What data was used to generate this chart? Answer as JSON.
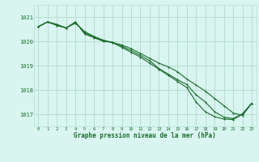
{
  "title": "Graphe pression niveau de la mer (hPa)",
  "bg_color": "#d8f5f0",
  "grid_color": "#b8ddd0",
  "line_color": "#1a6b2a",
  "ylim": [
    1016.5,
    1021.5
  ],
  "yticks": [
    1017,
    1018,
    1019,
    1020,
    1021
  ],
  "xlim": [
    -0.5,
    23.5
  ],
  "xticks": [
    0,
    1,
    2,
    3,
    4,
    5,
    6,
    7,
    8,
    9,
    10,
    11,
    12,
    13,
    14,
    15,
    16,
    17,
    18,
    19,
    20,
    21,
    22,
    23
  ],
  "series1": [
    1020.6,
    1020.8,
    1020.65,
    1020.55,
    1020.75,
    1020.4,
    1020.2,
    1020.05,
    1019.95,
    1019.85,
    1019.7,
    1019.5,
    1019.3,
    1019.1,
    1018.95,
    1018.75,
    1018.45,
    1018.2,
    1017.95,
    1017.65,
    1017.35,
    1017.05,
    1016.95,
    1017.45
  ],
  "series2": [
    1020.6,
    1020.8,
    1020.7,
    1020.55,
    1020.8,
    1020.3,
    1020.15,
    1020.0,
    1019.95,
    1019.75,
    1019.55,
    1019.35,
    1019.1,
    1018.85,
    1018.6,
    1018.35,
    1018.1,
    1017.5,
    1017.1,
    1016.9,
    1016.8,
    1016.78,
    1017.0,
    1017.45
  ],
  "series3": [
    1020.6,
    1020.8,
    1020.67,
    1020.55,
    1020.77,
    1020.35,
    1020.17,
    1020.02,
    1019.96,
    1019.8,
    1019.62,
    1019.42,
    1019.2,
    1018.88,
    1018.65,
    1018.42,
    1018.22,
    1017.8,
    1017.5,
    1017.1,
    1016.88,
    1016.82,
    1017.02,
    1017.45
  ]
}
